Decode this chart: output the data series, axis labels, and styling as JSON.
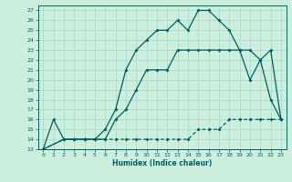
{
  "xlabel": "Humidex (Indice chaleur)",
  "bg_color": "#cceedd",
  "grid_color": "#aaddcc",
  "line_color": "#006060",
  "xlim": [
    -0.5,
    23.5
  ],
  "ylim": [
    13,
    27.5
  ],
  "xticks": [
    0,
    1,
    2,
    3,
    4,
    5,
    6,
    7,
    8,
    9,
    10,
    11,
    12,
    13,
    14,
    15,
    16,
    17,
    18,
    19,
    20,
    21,
    22,
    23
  ],
  "yticks": [
    13,
    14,
    15,
    16,
    17,
    18,
    19,
    20,
    21,
    22,
    23,
    24,
    25,
    26,
    27
  ],
  "line1_x": [
    0,
    1,
    2,
    3,
    4,
    5,
    6,
    7,
    8,
    9,
    10,
    11,
    12,
    13,
    14,
    15,
    16,
    17,
    18,
    19,
    20,
    21,
    22,
    23
  ],
  "line1_y": [
    13,
    16,
    14,
    14,
    14,
    14,
    15,
    17,
    21,
    23,
    24,
    25,
    25,
    26,
    25,
    27,
    27,
    26,
    25,
    23,
    20,
    22,
    18,
    16
  ],
  "line2_x": [
    0,
    2,
    3,
    4,
    5,
    6,
    7,
    8,
    9,
    10,
    11,
    12,
    13,
    14,
    15,
    16,
    17,
    18,
    19,
    20,
    21,
    22,
    23
  ],
  "line2_y": [
    13,
    14,
    14,
    14,
    14,
    14,
    16,
    17,
    19,
    21,
    21,
    21,
    23,
    23,
    23,
    23,
    23,
    23,
    23,
    23,
    22,
    23,
    16
  ],
  "line3_x": [
    0,
    2,
    3,
    4,
    5,
    6,
    7,
    8,
    9,
    10,
    11,
    12,
    13,
    14,
    15,
    16,
    17,
    18,
    19,
    20,
    21,
    22,
    23
  ],
  "line3_y": [
    13,
    14,
    14,
    14,
    14,
    14,
    14,
    14,
    14,
    14,
    14,
    14,
    14,
    14,
    15,
    15,
    15,
    16,
    16,
    16,
    16,
    16,
    16
  ]
}
